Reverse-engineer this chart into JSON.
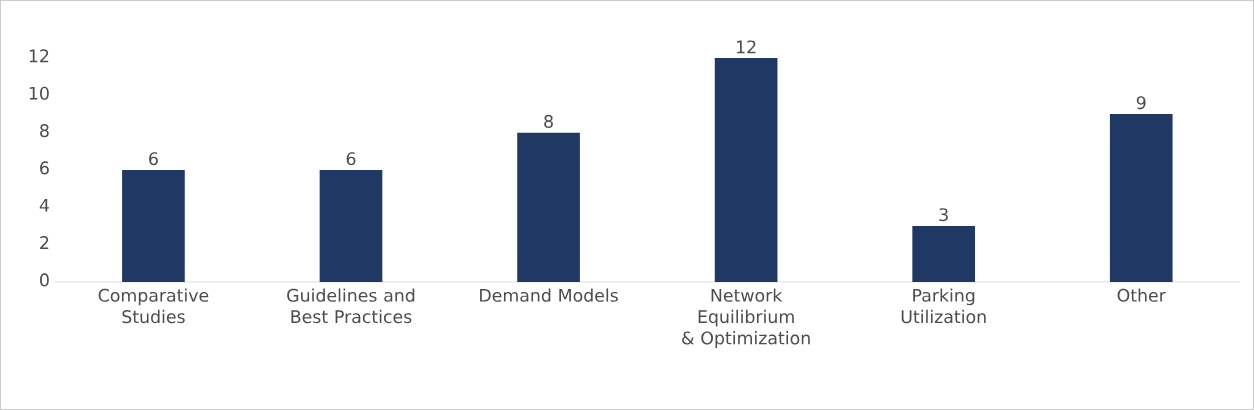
{
  "chart_data": {
    "type": "bar",
    "categories": [
      "Comparative Studies",
      "Guidelines and Best Practices",
      "Demand Models",
      "Network Equilibrium & Optimization",
      "Parking Utilization",
      "Other"
    ],
    "values": [
      6,
      6,
      8,
      12,
      3,
      9
    ],
    "color": "#203864",
    "ylim": [
      0,
      12
    ],
    "yticks": [
      0,
      2,
      4,
      6,
      8,
      10,
      12
    ],
    "data_labels": true,
    "grid": false
  }
}
